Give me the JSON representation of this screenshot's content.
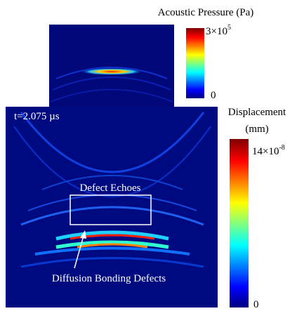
{
  "top_panel": {
    "colorbar": {
      "title": "Acoustic Pressure (Pa)",
      "max": {
        "base": "3×10",
        "exponent": "5"
      },
      "min": "0"
    }
  },
  "bottom_panel": {
    "time_label": "t=2.075 µs",
    "annotations": {
      "box": "Defect Echoes",
      "arrow": "Diffusion Bonding Defects"
    },
    "colorbar": {
      "title": [
        "Displacement",
        "(mm)"
      ],
      "max": {
        "base": "14×10",
        "exponent": "-8"
      },
      "min": "0"
    }
  }
}
